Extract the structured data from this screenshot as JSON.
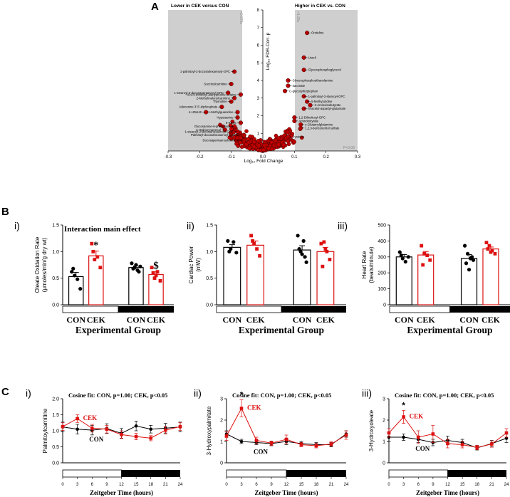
{
  "panel_labels": {
    "A": "A",
    "B": "B",
    "C": "C",
    "Bi": "i)",
    "Bii": "ii)",
    "Biii": "iii)",
    "Ci": "i)",
    "Cii": "ii)",
    "Ciii": "iii)"
  },
  "colors": {
    "con": "#000000",
    "cek": "#dd1111",
    "shade": "#cfcfcf",
    "point": "#cc0000"
  },
  "chart_data": [
    {
      "id": "volcano",
      "type": "scatter",
      "title_left": "Lower in CEK versus CON",
      "title_right": "Higher in CEK vs. CON",
      "xlabel": "Log₁₀ Fold Change",
      "ylabel": "Log₁₀ FDR-Corr. p",
      "xlim": [
        -0.3,
        0.3
      ],
      "ylim": [
        0,
        8
      ],
      "xticks": [
        "-0.3",
        "-0.2",
        "-0.1",
        "0.0",
        "0.1",
        "0.2",
        "0.3"
      ],
      "yticks": [
        "0",
        "1",
        "2",
        "3",
        "4",
        "5",
        "6",
        "7",
        "8"
      ],
      "threshold_left": "<0.875x",
      "threshold_right": ">1.25x",
      "threshold_p": "P<0.05",
      "labeled_points": [
        {
          "name": "Orotidine",
          "x": 0.14,
          "y": 6.7
        },
        {
          "name": "Uracil",
          "x": 0.13,
          "y": 5.3
        },
        {
          "name": "Glycerophosphoglycerol",
          "x": 0.13,
          "y": 4.6
        },
        {
          "name": "Glycerophosphoethanolamine",
          "x": 0.08,
          "y": 4.0
        },
        {
          "name": "Itaconate",
          "x": 0.08,
          "y": 3.7
        },
        {
          "name": "C-glycosyltryptophan",
          "x": 0.07,
          "y": 3.4
        },
        {
          "name": "1-palmitoyl-2-stearoyl-GPC",
          "x": 0.13,
          "y": 3.1
        },
        {
          "name": "5-Methyluridine",
          "x": 0.14,
          "y": 2.8
        },
        {
          "name": "3-Aminoisobutyrate",
          "x": 0.15,
          "y": 2.6
        },
        {
          "name": "N-acetyl-aspartyl-glutamate",
          "x": 0.13,
          "y": 2.4
        },
        {
          "name": "1,2-Dilinoleoyl-GPC",
          "x": 0.1,
          "y": 1.9
        },
        {
          "name": "Aminobutyrate",
          "x": 0.1,
          "y": 1.7
        },
        {
          "name": "γ-Glutamylglutamine",
          "x": 0.12,
          "y": 1.5
        },
        {
          "name": "1,2,3-benzenetriol sulfate",
          "x": 0.12,
          "y": 1.3
        },
        {
          "name": "Cysteine",
          "x": 0.08,
          "y": 0.8
        },
        {
          "name": "N,N,N-trimethyl-alanylproline betaine",
          "x": -0.07,
          "y": 3.2
        },
        {
          "name": "1-palmitoyl-2-docosahexaenoyl-GPC",
          "x": -0.09,
          "y": 4.5
        },
        {
          "name": "Succinylcarnitine",
          "x": -0.1,
          "y": 3.8
        },
        {
          "name": "1-stearoyl-2-docosapentaenoyl-GPC",
          "x": -0.11,
          "y": 3.3
        },
        {
          "name": "2-Methylmalonylcarnitine",
          "x": -0.09,
          "y": 3.0
        },
        {
          "name": "Thymidine",
          "x": -0.1,
          "y": 2.8
        },
        {
          "name": "Adenosine 3',5'-diphosphate",
          "x": -0.13,
          "y": 2.5
        },
        {
          "name": "4-HDoHE",
          "x": -0.18,
          "y": 2.2
        },
        {
          "name": "1-Methylguanidine",
          "x": -0.08,
          "y": 2.2
        },
        {
          "name": "Hypotaurine",
          "x": -0.08,
          "y": 1.9
        },
        {
          "name": "5-KETE",
          "x": -0.07,
          "y": 1.6
        },
        {
          "name": "Glucosamine-6-phosphate",
          "x": -0.09,
          "y": 1.4
        },
        {
          "name": "4-Hydroxynonenal",
          "x": -0.12,
          "y": 1.2
        },
        {
          "name": "1-stearoyl-2-docosahexaenoyl-GPE",
          "x": -0.08,
          "y": 1.1
        },
        {
          "name": "Palmitoyl-docosahexaenoyl-glycerol",
          "x": -0.06,
          "y": 0.9
        },
        {
          "name": "Docosapentaenoylcarnitine",
          "x": -0.06,
          "y": 0.6
        }
      ]
    },
    {
      "id": "oleate",
      "type": "bar",
      "title": "Interaction main effect",
      "ylabel": "Oleate Oxidation Rate (μmoles/min/g dry wt)",
      "xlabel": "Experimental Group",
      "categories": [
        "CON",
        "CEK",
        "CON",
        "CEK"
      ],
      "values": [
        0.53,
        0.92,
        0.7,
        0.57
      ],
      "errors": [
        0.08,
        0.09,
        0.03,
        0.05
      ],
      "points": [
        [
          0.62,
          0.55,
          0.48,
          0.3,
          0.68
        ],
        [
          1.15,
          0.85,
          0.9,
          0.7,
          1.0
        ],
        [
          0.78,
          0.7,
          0.65,
          0.72,
          0.68,
          0.75,
          0.62
        ],
        [
          0.7,
          0.5,
          0.62,
          0.45,
          0.6,
          0.55
        ]
      ],
      "annotations": [
        "",
        "*",
        "",
        "$"
      ],
      "ylim": [
        0,
        1.5
      ],
      "yticks": [
        "0.0",
        "0.5",
        "1.0",
        "1.5"
      ]
    },
    {
      "id": "power",
      "type": "bar",
      "ylabel": "Cardiac Power (mW)",
      "xlabel": "Experimental Group",
      "categories": [
        "CON",
        "CEK",
        "CON",
        "CEK"
      ],
      "values": [
        1.08,
        1.12,
        1.03,
        1.0
      ],
      "errors": [
        0.05,
        0.08,
        0.08,
        0.08
      ],
      "points": [
        [
          1.2,
          1.05,
          1.18,
          0.98,
          1.0
        ],
        [
          1.3,
          1.15,
          1.05,
          0.92,
          1.2
        ],
        [
          1.3,
          1.0,
          1.2,
          0.8,
          1.05,
          0.95,
          0.9
        ],
        [
          1.15,
          1.18,
          1.0,
          0.85,
          0.72,
          1.05
        ]
      ],
      "ylim": [
        0,
        1.5
      ],
      "yticks": [
        "0.0",
        "0.5",
        "1.0",
        "1.5"
      ]
    },
    {
      "id": "heartrate",
      "type": "bar",
      "ylabel": "Heart Rate (beats/minute)",
      "xlabel": "Experimental Group",
      "categories": [
        "CON",
        "CEK",
        "CON",
        "CEK"
      ],
      "values": [
        300,
        312,
        290,
        350
      ],
      "errors": [
        15,
        22,
        25,
        12
      ],
      "points": [
        [
          330,
          290,
          270,
          300,
          310
        ],
        [
          370,
          320,
          310,
          280,
          250
        ],
        [
          370,
          320,
          290,
          280,
          260,
          220,
          300
        ],
        [
          390,
          370,
          340,
          320,
          350,
          330
        ]
      ],
      "ylim": [
        0,
        500
      ],
      "yticks": [
        "0",
        "100",
        "200",
        "300",
        "400",
        "500"
      ]
    },
    {
      "id": "palmitoylcarnitine",
      "type": "line",
      "title": "Cosine fit: CON, p=1.00; CEK, p<0.05",
      "ylabel": "Palmitoylcarnitine",
      "xlabel": "Zeitgeber Time (hours)",
      "x": [
        0,
        3,
        6,
        9,
        12,
        15,
        18,
        21,
        24
      ],
      "xticks": [
        "0",
        "3",
        "6",
        "9",
        "12",
        "15",
        "18",
        "21",
        "24"
      ],
      "ylim": [
        0,
        2
      ],
      "yticks": [
        "0.0",
        "0.5",
        "1.0",
        "1.5",
        "2.0"
      ],
      "series": [
        {
          "name": "CON",
          "values": [
            1.12,
            1.05,
            1.02,
            1.07,
            0.92,
            1.15,
            1.05,
            1.08,
            1.12
          ],
          "errors": [
            0.15,
            0.15,
            0.15,
            0.15,
            0.15,
            0.15,
            0.12,
            0.15,
            0.15
          ]
        },
        {
          "name": "CEK",
          "values": [
            1.13,
            1.38,
            1.08,
            1.05,
            0.88,
            0.82,
            0.77,
            1.02,
            1.13
          ],
          "errors": [
            0.12,
            0.12,
            0.12,
            0.12,
            0.12,
            0.1,
            0.08,
            0.12,
            0.12
          ]
        }
      ]
    },
    {
      "id": "hydroxypalmitate",
      "type": "line",
      "title": "Cosine fit: CON, p=1.00; CEK, p<0.05",
      "ylabel": "3-Hydroxypalmitate",
      "xlabel": "Zeitgeber Time (hours)",
      "x": [
        0,
        3,
        6,
        9,
        12,
        15,
        18,
        21,
        24
      ],
      "xticks": [
        "0",
        "3",
        "6",
        "9",
        "12",
        "15",
        "18",
        "21",
        "24"
      ],
      "ylim": [
        0,
        3
      ],
      "yticks": [
        "0",
        "1",
        "2",
        "3"
      ],
      "annotation": "*",
      "series": [
        {
          "name": "CON",
          "values": [
            1.35,
            1.0,
            0.95,
            0.9,
            1.0,
            0.9,
            0.85,
            0.85,
            1.35
          ],
          "errors": [
            0.15,
            0.1,
            0.1,
            0.1,
            0.15,
            0.1,
            0.1,
            0.1,
            0.15
          ]
        },
        {
          "name": "CEK",
          "values": [
            1.25,
            2.55,
            1.05,
            0.92,
            1.1,
            0.85,
            0.8,
            0.88,
            1.3
          ],
          "errors": [
            0.2,
            0.4,
            0.15,
            0.1,
            0.2,
            0.1,
            0.1,
            0.1,
            0.2
          ]
        }
      ]
    },
    {
      "id": "hydroxyoleate",
      "type": "line",
      "title": "Cosine fit: CON, p=1.00; CEK, p<0.05",
      "ylabel": "3-Hydroxyoleate",
      "xlabel": "Zeitgeber Time (hours)",
      "x": [
        0,
        3,
        6,
        9,
        12,
        15,
        18,
        21,
        24
      ],
      "xticks": [
        "0",
        "3",
        "6",
        "9",
        "12",
        "15",
        "18",
        "21",
        "24"
      ],
      "ylim": [
        0,
        3
      ],
      "yticks": [
        "0",
        "1",
        "2",
        "3"
      ],
      "annotation": "*",
      "series": [
        {
          "name": "CON",
          "values": [
            1.2,
            1.2,
            1.1,
            0.95,
            1.05,
            0.95,
            0.7,
            0.9,
            1.15
          ],
          "errors": [
            0.2,
            0.15,
            0.15,
            0.15,
            0.2,
            0.15,
            0.1,
            0.15,
            0.2
          ]
        },
        {
          "name": "CEK",
          "values": [
            1.4,
            2.15,
            1.2,
            1.35,
            0.9,
            0.85,
            0.72,
            0.88,
            1.4
          ],
          "errors": [
            0.2,
            0.3,
            0.3,
            0.4,
            0.2,
            0.15,
            0.1,
            0.15,
            0.2
          ]
        }
      ]
    }
  ]
}
